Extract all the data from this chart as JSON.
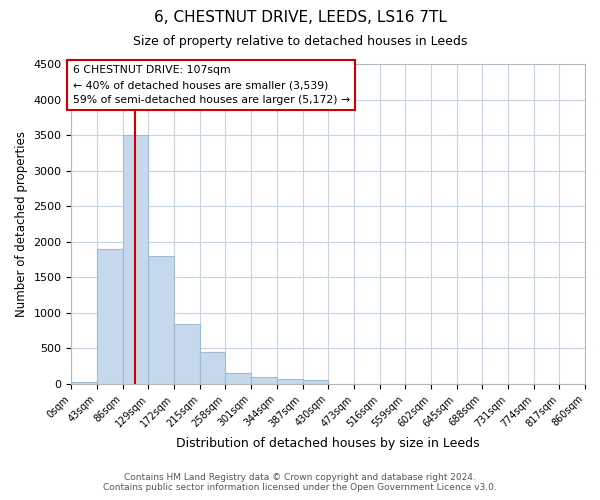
{
  "title_line1": "6, CHESTNUT DRIVE, LEEDS, LS16 7TL",
  "title_line2": "Size of property relative to detached houses in Leeds",
  "xlabel": "Distribution of detached houses by size in Leeds",
  "ylabel": "Number of detached properties",
  "annotation_line1": "6 CHESTNUT DRIVE: 107sqm",
  "annotation_line2": "← 40% of detached houses are smaller (3,539)",
  "annotation_line3": "59% of semi-detached houses are larger (5,172) →",
  "property_sqm": 107,
  "bin_edges": [
    0,
    43,
    86,
    129,
    172,
    215,
    258,
    301,
    344,
    387,
    430,
    473,
    516,
    559,
    602,
    645,
    688,
    731,
    774,
    817,
    860
  ],
  "bin_labels": [
    "0sqm",
    "43sqm",
    "86sqm",
    "129sqm",
    "172sqm",
    "215sqm",
    "258sqm",
    "301sqm",
    "344sqm",
    "387sqm",
    "430sqm",
    "473sqm",
    "516sqm",
    "559sqm",
    "602sqm",
    "645sqm",
    "688sqm",
    "731sqm",
    "774sqm",
    "817sqm",
    "860sqm"
  ],
  "bar_heights": [
    30,
    1900,
    3500,
    1800,
    850,
    450,
    160,
    100,
    70,
    55,
    0,
    0,
    0,
    0,
    0,
    0,
    0,
    0,
    0,
    0
  ],
  "bar_color": "#c6d9ec",
  "bar_edge_color": "#a0bcd4",
  "vline_color": "#cc0000",
  "vline_x": 107,
  "ylim": [
    0,
    4500
  ],
  "yticks": [
    0,
    500,
    1000,
    1500,
    2000,
    2500,
    3000,
    3500,
    4000,
    4500
  ],
  "annotation_box_edge_color": "#cc0000",
  "bg_color": "#ffffff",
  "plot_bg_color": "#ffffff",
  "grid_color": "#c8d4e0",
  "footer_line1": "Contains HM Land Registry data © Crown copyright and database right 2024.",
  "footer_line2": "Contains public sector information licensed under the Open Government Licence v3.0."
}
